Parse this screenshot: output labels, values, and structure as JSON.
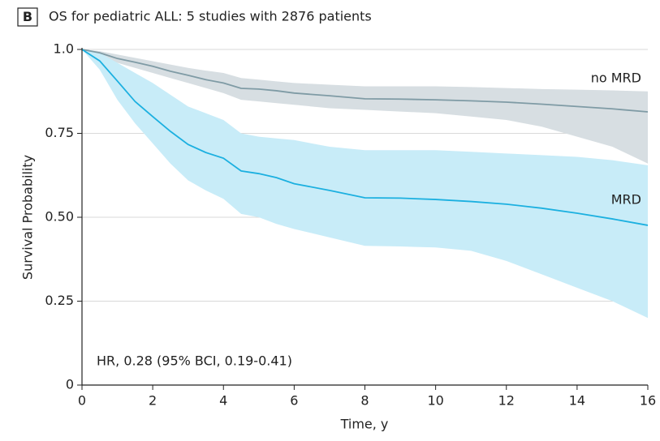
{
  "chart_data": {
    "type": "survival",
    "panel_label": "B",
    "title": "OS for pediatric ALL: 5 studies with 2876 patients",
    "x_label": "Time, y",
    "y_label": "Survival Probability",
    "annotation": "HR, 0.28 (95% BCI, 0.19-0.41)",
    "x": [
      0,
      0.5,
      1,
      1.5,
      2,
      2.5,
      3,
      3.5,
      4,
      4.5,
      5,
      5.5,
      6,
      7,
      8,
      9,
      10,
      11,
      12,
      13,
      14,
      15,
      16
    ],
    "series": [
      {
        "name": "no MRD",
        "color": "#7f9ba5",
        "band_color": "#d7dee2",
        "values": [
          1,
          0.99,
          0.973,
          0.962,
          0.95,
          0.935,
          0.923,
          0.91,
          0.9,
          0.884,
          0.882,
          0.877,
          0.87,
          0.862,
          0.853,
          0.852,
          0.85,
          0.847,
          0.843,
          0.837,
          0.83,
          0.823,
          0.814
        ],
        "upper": [
          1,
          0.995,
          0.985,
          0.975,
          0.965,
          0.955,
          0.945,
          0.937,
          0.93,
          0.915,
          0.91,
          0.905,
          0.9,
          0.895,
          0.89,
          0.89,
          0.89,
          0.888,
          0.885,
          0.882,
          0.88,
          0.878,
          0.875
        ],
        "lower": [
          1,
          0.985,
          0.96,
          0.945,
          0.93,
          0.915,
          0.9,
          0.885,
          0.87,
          0.85,
          0.845,
          0.84,
          0.835,
          0.825,
          0.82,
          0.815,
          0.81,
          0.8,
          0.79,
          0.77,
          0.74,
          0.71,
          0.66
        ]
      },
      {
        "name": "MRD",
        "color": "#1cb0e0",
        "band_color": "#c8ecf8",
        "values": [
          1,
          0.966,
          0.906,
          0.845,
          0.8,
          0.756,
          0.717,
          0.693,
          0.676,
          0.638,
          0.63,
          0.618,
          0.6,
          0.58,
          0.558,
          0.557,
          0.553,
          0.547,
          0.539,
          0.527,
          0.512,
          0.495,
          0.476
        ],
        "upper": [
          1,
          0.99,
          0.96,
          0.93,
          0.9,
          0.865,
          0.83,
          0.81,
          0.79,
          0.75,
          0.74,
          0.735,
          0.73,
          0.71,
          0.7,
          0.7,
          0.7,
          0.695,
          0.69,
          0.685,
          0.68,
          0.67,
          0.655
        ],
        "lower": [
          1,
          0.94,
          0.85,
          0.78,
          0.72,
          0.66,
          0.61,
          0.58,
          0.555,
          0.51,
          0.5,
          0.48,
          0.465,
          0.44,
          0.415,
          0.413,
          0.41,
          0.4,
          0.37,
          0.33,
          0.29,
          0.25,
          0.2
        ]
      }
    ],
    "xlim": [
      0,
      16
    ],
    "xticks": [
      0,
      2,
      4,
      6,
      8,
      10,
      12,
      14,
      16
    ],
    "ylim": [
      0,
      1
    ],
    "yticks": [
      0,
      0.25,
      {
        "value": 0.5,
        "label": "0.50"
      },
      0.75,
      {
        "value": 1,
        "label": "1.0"
      }
    ],
    "grid": true
  }
}
